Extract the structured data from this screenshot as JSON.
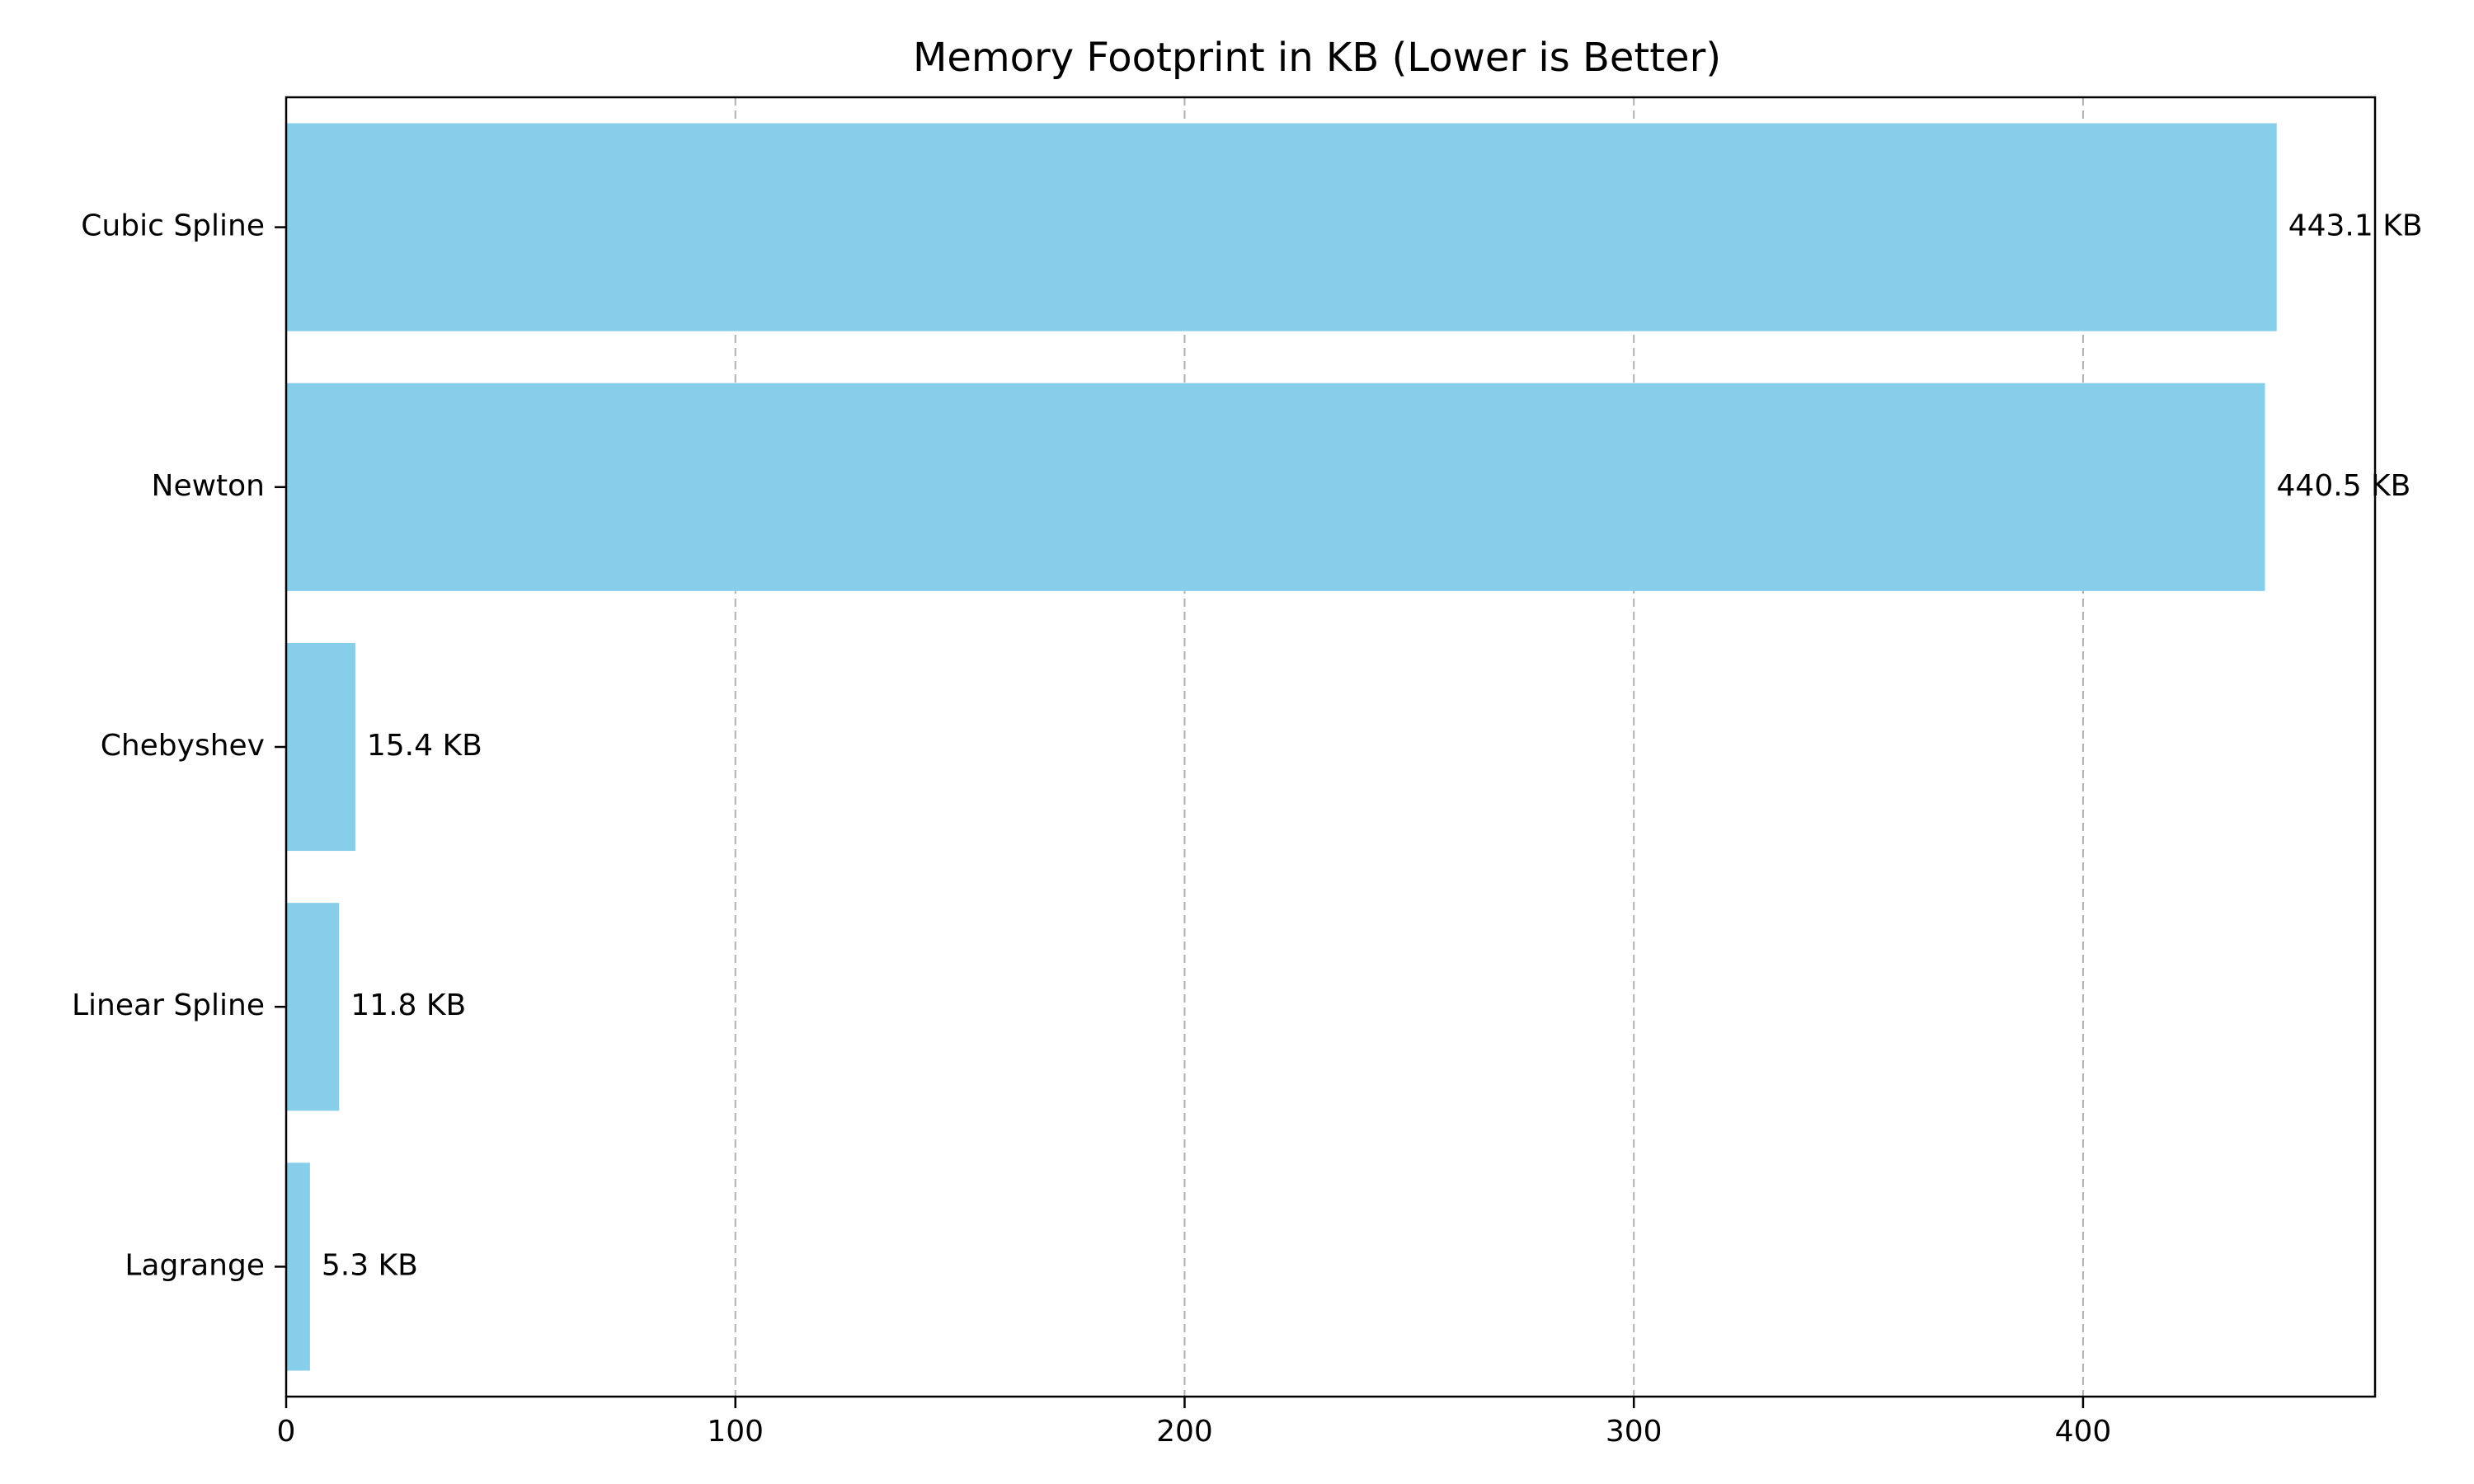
{
  "chart_data": {
    "type": "bar",
    "orientation": "horizontal",
    "title": "Memory Footprint in KB (Lower is Better)",
    "xlabel": "",
    "ylabel": "",
    "categories": [
      "Cubic Spline",
      "Newton",
      "Chebyshev",
      "Linear Spline",
      "Lagrange"
    ],
    "values": [
      443.1,
      440.5,
      15.4,
      11.8,
      5.3
    ],
    "value_labels": [
      "443.1 KB",
      "440.5 KB",
      "15.4 KB",
      "11.8 KB",
      "5.3 KB"
    ],
    "xlim": [
      0,
      465
    ],
    "xticks": [
      0,
      100,
      200,
      300,
      400
    ],
    "xtick_labels": [
      "0",
      "100",
      "200",
      "300",
      "400"
    ],
    "grid": "x, dashed",
    "legend": "none",
    "bar_color": "#87CEEB"
  }
}
